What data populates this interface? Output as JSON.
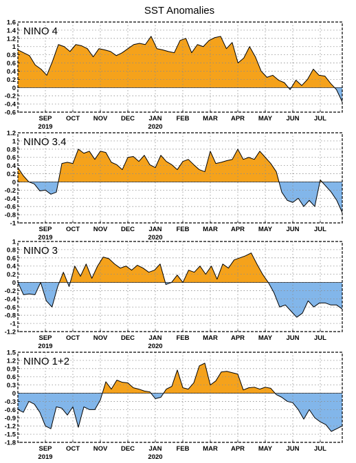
{
  "title": "SST Anomalies",
  "colors": {
    "positive": "#f5a21b",
    "negative": "#82b6ea",
    "line": "#000000",
    "grid": "#8c8c8c"
  },
  "x_axis": {
    "months": [
      "SEP",
      "OCT",
      "NOV",
      "DEC",
      "JAN",
      "FEB",
      "MAR",
      "APR",
      "MAY",
      "JUN",
      "JUL"
    ],
    "year_labels": [
      {
        "month_index": 0,
        "text": "2019"
      },
      {
        "month_index": 4,
        "text": "2020"
      }
    ]
  },
  "chart_data": [
    {
      "type": "area",
      "label": "NINO 4",
      "ylim": [
        -0.6,
        1.6
      ],
      "yticks": [
        -0.6,
        -0.4,
        -0.2,
        0,
        0.2,
        0.4,
        0.6,
        0.8,
        1,
        1.2,
        1.4,
        1.6
      ],
      "ytick_labels": [
        "-0.6",
        "-0.4",
        "-0.2",
        "0",
        "0.2",
        "0.4",
        "0.6",
        "0.8",
        "1",
        "1.2",
        "1.4",
        "1.6"
      ],
      "grid": true,
      "values": [
        0.92,
        0.85,
        0.78,
        0.55,
        0.45,
        0.3,
        0.65,
        1.05,
        1.0,
        0.88,
        1.05,
        1.02,
        0.95,
        0.75,
        0.95,
        0.92,
        0.88,
        0.78,
        0.85,
        0.95,
        1.05,
        1.08,
        1.05,
        1.25,
        0.95,
        0.92,
        0.88,
        0.85,
        1.15,
        1.2,
        0.85,
        1.05,
        1.0,
        1.15,
        1.22,
        1.25,
        0.95,
        1.1,
        0.6,
        0.72,
        1.0,
        0.75,
        0.4,
        0.25,
        0.3,
        0.18,
        0.12,
        -0.05,
        0.18,
        0.05,
        0.2,
        0.45,
        0.3,
        0.28,
        0.1,
        -0.05,
        -0.35
      ]
    },
    {
      "type": "area",
      "label": "NINO 3.4",
      "ylim": [
        -1,
        1.2
      ],
      "yticks": [
        -1,
        -0.8,
        -0.6,
        -0.4,
        -0.2,
        0,
        0.2,
        0.4,
        0.6,
        0.8,
        1,
        1.2
      ],
      "ytick_labels": [
        "-1",
        "-0.8",
        "-0.6",
        "-0.4",
        "-0.2",
        "0",
        "0.2",
        "0.4",
        "0.6",
        "0.8",
        "1",
        "1.2"
      ],
      "grid": true,
      "values": [
        0.35,
        0.15,
        0.0,
        -0.05,
        -0.22,
        -0.2,
        -0.3,
        -0.25,
        0.45,
        0.48,
        0.45,
        0.8,
        0.7,
        0.75,
        0.55,
        0.75,
        0.72,
        0.48,
        0.42,
        0.3,
        0.6,
        0.62,
        0.5,
        0.65,
        0.42,
        0.35,
        0.65,
        0.5,
        0.42,
        0.3,
        0.5,
        0.55,
        0.42,
        0.3,
        0.25,
        0.75,
        0.45,
        0.48,
        0.52,
        0.55,
        0.8,
        0.55,
        0.6,
        0.55,
        0.75,
        0.6,
        0.45,
        0.25,
        -0.25,
        -0.45,
        -0.5,
        -0.4,
        -0.6,
        -0.45,
        -0.6,
        0.05,
        -0.1,
        -0.25,
        -0.45,
        -0.75
      ]
    },
    {
      "type": "area",
      "label": "NINO 3",
      "ylim": [
        -1.2,
        1
      ],
      "yticks": [
        -1.2,
        -1,
        -0.8,
        -0.6,
        -0.4,
        -0.2,
        0,
        0.2,
        0.4,
        0.6,
        0.8,
        1
      ],
      "ytick_labels": [
        "-1.2",
        "-1",
        "-0.8",
        "-0.6",
        "-0.4",
        "-0.2",
        "0",
        "0.2",
        "0.4",
        "0.6",
        "0.8",
        "1"
      ],
      "grid": true,
      "values": [
        0.0,
        -0.3,
        -0.28,
        -0.3,
        0.0,
        -0.45,
        -0.6,
        -0.1,
        0.25,
        -0.1,
        0.4,
        0.15,
        0.45,
        0.1,
        0.4,
        0.62,
        0.58,
        0.45,
        0.35,
        0.4,
        0.3,
        0.42,
        0.35,
        0.25,
        0.3,
        0.45,
        -0.05,
        0.0,
        0.18,
        0.0,
        0.3,
        0.25,
        0.4,
        0.2,
        0.4,
        0.08,
        0.45,
        0.35,
        0.55,
        0.6,
        0.65,
        0.72,
        0.45,
        0.2,
        0.0,
        -0.25,
        -0.6,
        -0.55,
        -0.7,
        -0.85,
        -0.75,
        -0.45,
        -0.6,
        -0.5,
        -0.5,
        -0.55,
        -0.55,
        -0.65
      ]
    },
    {
      "type": "area",
      "label": "NINO 1+2",
      "ylim": [
        -1.8,
        1.5
      ],
      "yticks": [
        -1.8,
        -1.5,
        -1.2,
        -0.9,
        -0.6,
        -0.3,
        0,
        0.3,
        0.6,
        0.9,
        1.2,
        1.5
      ],
      "ytick_labels": [
        "-1.8",
        "-1.5",
        "-1.2",
        "-0.9",
        "-0.6",
        "-0.3",
        "0",
        "0.3",
        "0.6",
        "0.9",
        "1.2",
        "1.5"
      ],
      "grid": true,
      "values": [
        -0.6,
        -0.7,
        -0.3,
        -0.4,
        -0.7,
        -1.2,
        -1.3,
        -0.5,
        -0.55,
        -0.8,
        -0.5,
        -1.25,
        -0.5,
        -0.6,
        -0.6,
        -0.25,
        0.42,
        0.15,
        0.48,
        0.4,
        0.38,
        0.2,
        0.15,
        0.08,
        0.05,
        -0.2,
        -0.15,
        0.15,
        0.25,
        0.85,
        0.2,
        0.15,
        0.38,
        1.0,
        1.1,
        0.3,
        0.45,
        0.78,
        0.8,
        0.75,
        0.7,
        0.12,
        0.2,
        0.22,
        0.15,
        0.22,
        0.18,
        -0.05,
        -0.15,
        -0.3,
        -0.35,
        -0.6,
        -0.95,
        -0.6,
        -0.9,
        -1.05,
        -1.15,
        -1.4,
        -1.3,
        -1.2
      ]
    }
  ]
}
